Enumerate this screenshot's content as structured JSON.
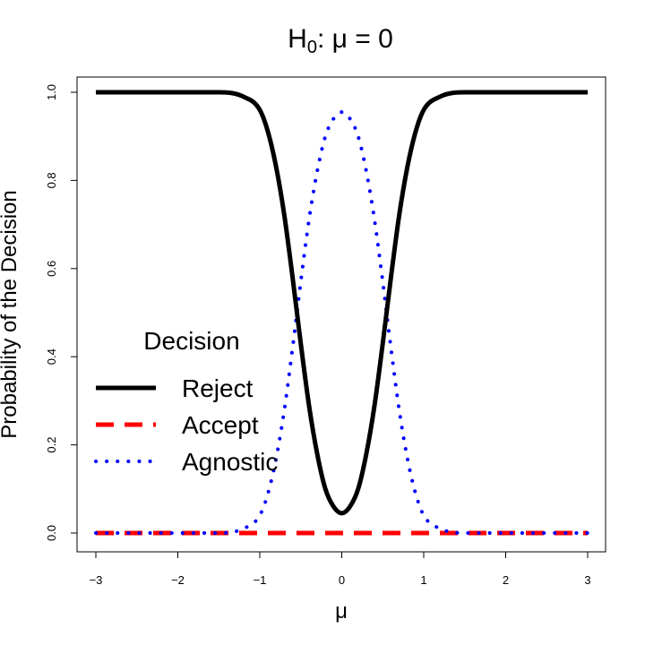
{
  "chart_data": {
    "type": "line",
    "title_main": "H",
    "title_sub": "0",
    "title_rest": ": μ = 0",
    "xlabel": "μ",
    "ylabel": "Probability of the Decision",
    "xlim": [
      -3,
      3
    ],
    "ylim": [
      0,
      1
    ],
    "x_ticks": [
      -3,
      -2,
      -1,
      0,
      1,
      2,
      3
    ],
    "x_tick_labels": [
      "−3",
      "−2",
      "−1",
      "0",
      "1",
      "2",
      "3"
    ],
    "y_ticks": [
      0,
      0.2,
      0.4,
      0.6,
      0.8,
      1.0
    ],
    "y_tick_labels": [
      "0.0",
      "0.2",
      "0.4",
      "0.6",
      "0.8",
      "1.0"
    ],
    "grid": false,
    "legend": {
      "title": "Decision",
      "position": "left-middle"
    },
    "x": [
      -3.0,
      -1.5,
      -1.2,
      -1.0,
      -0.9,
      -0.8,
      -0.7,
      -0.6,
      -0.5,
      -0.4,
      -0.3,
      -0.2,
      -0.1,
      0.0,
      0.1,
      0.2,
      0.3,
      0.4,
      0.5,
      0.6,
      0.7,
      0.8,
      0.9,
      1.0,
      1.2,
      1.5,
      3.0
    ],
    "series": [
      {
        "name": "Reject",
        "color": "#000000",
        "style": "solid",
        "values": [
          1.0,
          1.0,
          0.99,
          0.96,
          0.91,
          0.83,
          0.72,
          0.58,
          0.43,
          0.29,
          0.18,
          0.1,
          0.06,
          0.045,
          0.06,
          0.1,
          0.18,
          0.29,
          0.43,
          0.58,
          0.72,
          0.83,
          0.91,
          0.96,
          0.99,
          1.0,
          1.0
        ]
      },
      {
        "name": "Accept",
        "color": "#ff0000",
        "style": "dashed",
        "values": [
          0,
          0,
          0,
          0,
          0,
          0,
          0,
          0,
          0,
          0,
          0,
          0,
          0,
          0,
          0,
          0,
          0,
          0,
          0,
          0,
          0,
          0,
          0,
          0,
          0,
          0,
          0
        ]
      },
      {
        "name": "Agnostic",
        "color": "#0000ff",
        "style": "dotted",
        "values": [
          0,
          0,
          0.01,
          0.04,
          0.09,
          0.17,
          0.28,
          0.42,
          0.57,
          0.71,
          0.82,
          0.9,
          0.94,
          0.955,
          0.94,
          0.9,
          0.82,
          0.71,
          0.57,
          0.42,
          0.28,
          0.17,
          0.09,
          0.04,
          0.01,
          0,
          0
        ]
      }
    ]
  }
}
